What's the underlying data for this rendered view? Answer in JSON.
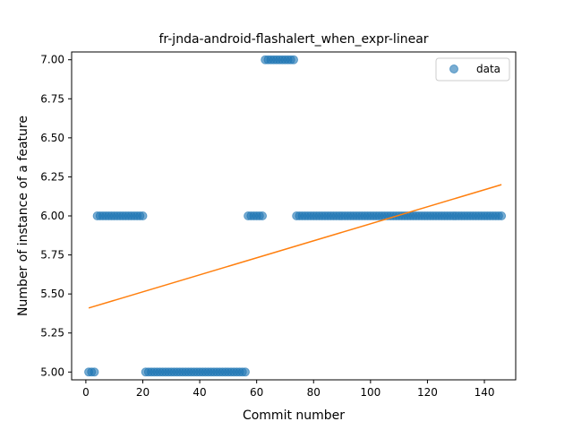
{
  "chart_data": {
    "type": "scatter",
    "title": "fr-jnda-android-flashalert_when_expr-linear",
    "xlabel": "Commit number",
    "ylabel": "Number of instance of a feature",
    "xlim": [
      -5,
      151
    ],
    "ylim": [
      4.95,
      7.05
    ],
    "xticks": [
      0,
      20,
      40,
      60,
      80,
      100,
      120,
      140
    ],
    "xtick_labels": [
      "0",
      "20",
      "40",
      "60",
      "80",
      "100",
      "120",
      "140"
    ],
    "yticks": [
      5.0,
      5.25,
      5.5,
      5.75,
      6.0,
      6.25,
      6.5,
      6.75,
      7.0
    ],
    "ytick_labels": [
      "5.00",
      "5.25",
      "5.50",
      "5.75",
      "6.00",
      "6.25",
      "6.50",
      "6.75",
      "7.00"
    ],
    "legend": {
      "position": "top-right",
      "entries": [
        "data"
      ]
    },
    "grid": false,
    "series": [
      {
        "name": "data",
        "kind": "scatter",
        "color": "#1f77b4",
        "alpha": 0.6,
        "segments": [
          {
            "x_start": 1,
            "x_end": 3,
            "y": 5.0
          },
          {
            "x_start": 4,
            "x_end": 20,
            "y": 6.0
          },
          {
            "x_start": 21,
            "x_end": 56,
            "y": 5.0
          },
          {
            "x_start": 57,
            "x_end": 62,
            "y": 6.0
          },
          {
            "x_start": 63,
            "x_end": 73,
            "y": 7.0
          },
          {
            "x_start": 74,
            "x_end": 146,
            "y": 6.0
          }
        ]
      },
      {
        "name": "",
        "kind": "line",
        "color": "#ff7f0e",
        "x": [
          1,
          146
        ],
        "y": [
          5.41,
          6.2
        ]
      }
    ]
  }
}
